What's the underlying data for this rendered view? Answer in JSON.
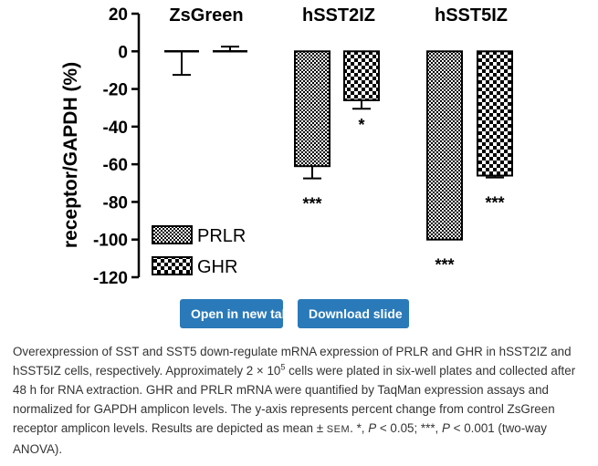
{
  "chart_data": {
    "type": "bar",
    "ylabel": "receptor/GAPDH (%)",
    "ylim": [
      -120,
      20
    ],
    "yticks": [
      20,
      0,
      -20,
      -40,
      -60,
      -80,
      -100,
      -120
    ],
    "groups": [
      "ZsGreen",
      "hSST2IZ",
      "hSST5IZ"
    ],
    "series": [
      {
        "name": "PRLR",
        "pattern": "dots",
        "values": [
          0,
          -61,
          -100
        ],
        "errors": [
          12.5,
          6.5,
          0
        ],
        "significance": [
          "",
          "***",
          "***"
        ]
      },
      {
        "name": "GHR",
        "pattern": "checker",
        "values": [
          0,
          -26,
          -66
        ],
        "errors": [
          2.5,
          4.5,
          1
        ],
        "significance": [
          "",
          "*",
          "***"
        ]
      }
    ],
    "legend": {
      "position": "bottom-left",
      "entries": [
        "PRLR",
        "GHR"
      ]
    }
  },
  "buttons": {
    "open": "Open in new tab",
    "download": "Download slide"
  },
  "caption": {
    "p1": "Overexpression of SST and SST5 down-regulate mRNA expression of PRLR and GHR in hSST2IZ and hSST5IZ cells, respectively. Approximately 2 × 10",
    "sup": "5",
    "p2": " cells were plated in six-well plates and collected after 48 h for RNA extraction. GHR and PRLR mRNA were quantified by TaqMan expression assays and normalized for GAPDH amplicon levels. The y-axis represents percent change from control ZsGreen receptor amplicon levels. Results are depicted as mean ± ",
    "sem": "SEM",
    "p3": ". *, ",
    "p_symbol": "P",
    "p4": " < 0.05; ***, ",
    "p_symbol2": "P",
    "p5": " < 0.001 (two-way ANOVA)."
  },
  "colors": {
    "button": "#2a7ab9",
    "caption_text": "#333333"
  }
}
